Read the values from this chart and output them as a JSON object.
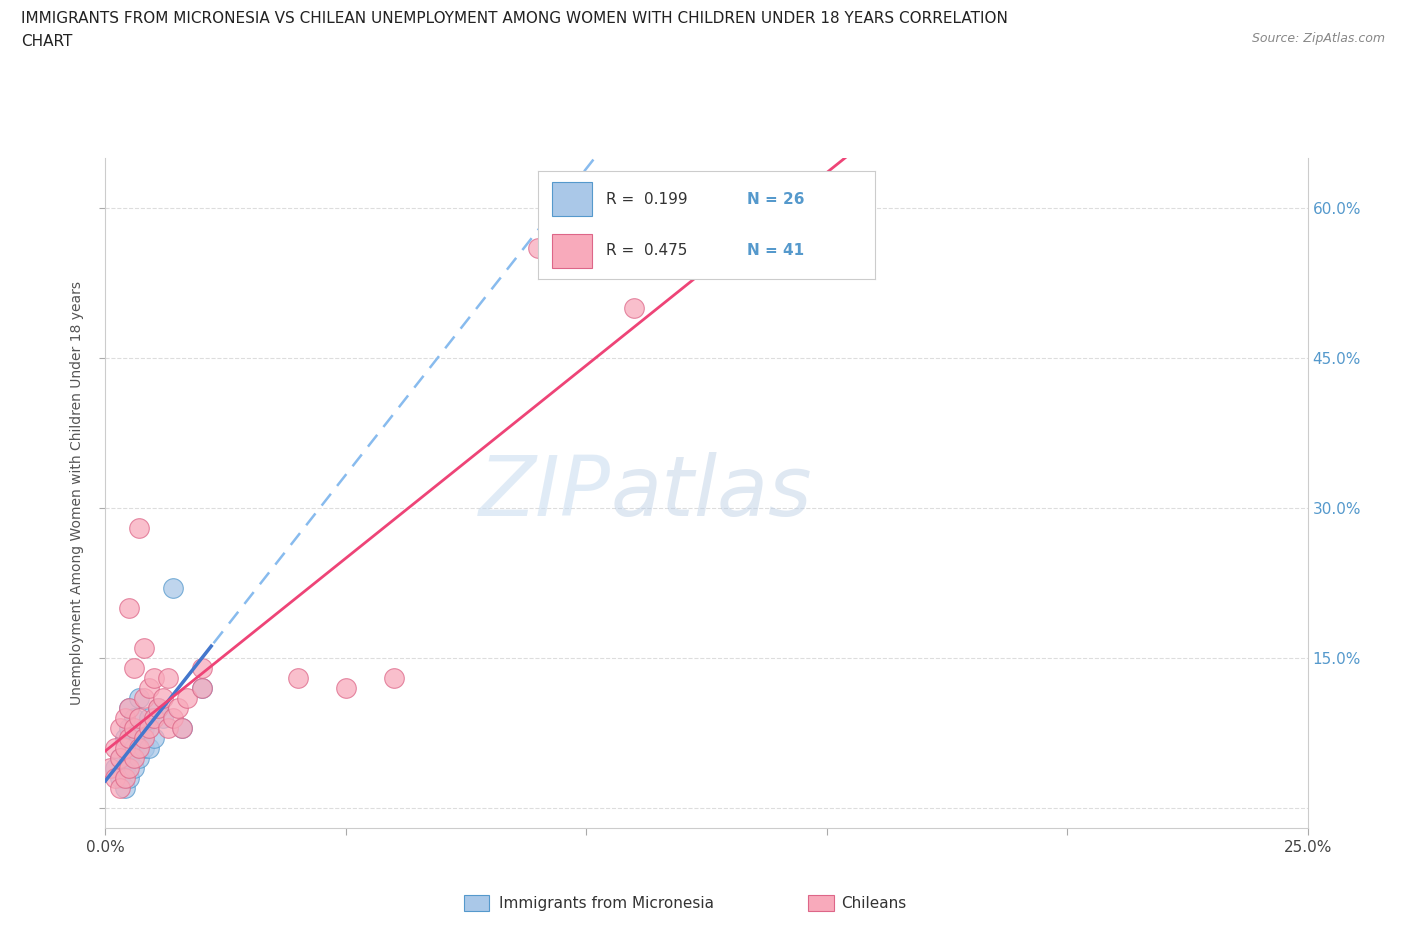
{
  "title_line1": "IMMIGRANTS FROM MICRONESIA VS CHILEAN UNEMPLOYMENT AMONG WOMEN WITH CHILDREN UNDER 18 YEARS CORRELATION",
  "title_line2": "CHART",
  "source_text": "Source: ZipAtlas.com",
  "ylabel": "Unemployment Among Women with Children Under 18 years",
  "xlim": [
    0.0,
    0.25
  ],
  "ylim": [
    -0.02,
    0.65
  ],
  "yticks": [
    0.0,
    0.15,
    0.3,
    0.45,
    0.6
  ],
  "ytick_right_labels": [
    "",
    "15.0%",
    "30.0%",
    "45.0%",
    "60.0%"
  ],
  "watermark_zip": "ZIP",
  "watermark_atlas": "atlas",
  "color_blue_fill": "#aac8e8",
  "color_blue_edge": "#5599cc",
  "color_pink_fill": "#f8aabb",
  "color_pink_edge": "#dd6688",
  "color_trendline_blue_solid": "#4477cc",
  "color_trendline_blue_dash": "#88bbee",
  "color_trendline_pink": "#ee4477",
  "color_grid": "#dddddd",
  "color_right_axis": "#5599cc",
  "blue_x": [
    0.002,
    0.003,
    0.003,
    0.004,
    0.004,
    0.004,
    0.005,
    0.005,
    0.005,
    0.005,
    0.006,
    0.006,
    0.006,
    0.007,
    0.007,
    0.007,
    0.008,
    0.008,
    0.009,
    0.009,
    0.01,
    0.011,
    0.012,
    0.014,
    0.016,
    0.02
  ],
  "blue_y": [
    0.04,
    0.03,
    0.05,
    0.02,
    0.04,
    0.07,
    0.03,
    0.05,
    0.08,
    0.1,
    0.04,
    0.06,
    0.09,
    0.05,
    0.07,
    0.11,
    0.06,
    0.08,
    0.06,
    0.09,
    0.07,
    0.1,
    0.09,
    0.22,
    0.08,
    0.12
  ],
  "pink_x": [
    0.001,
    0.002,
    0.002,
    0.003,
    0.003,
    0.003,
    0.004,
    0.004,
    0.004,
    0.005,
    0.005,
    0.005,
    0.005,
    0.006,
    0.006,
    0.006,
    0.007,
    0.007,
    0.007,
    0.008,
    0.008,
    0.008,
    0.009,
    0.009,
    0.01,
    0.01,
    0.011,
    0.012,
    0.013,
    0.013,
    0.014,
    0.015,
    0.016,
    0.017,
    0.02,
    0.02,
    0.04,
    0.05,
    0.06,
    0.09,
    0.11
  ],
  "pink_y": [
    0.04,
    0.03,
    0.06,
    0.02,
    0.05,
    0.08,
    0.03,
    0.06,
    0.09,
    0.04,
    0.07,
    0.1,
    0.2,
    0.05,
    0.08,
    0.14,
    0.06,
    0.09,
    0.28,
    0.07,
    0.11,
    0.16,
    0.08,
    0.12,
    0.09,
    0.13,
    0.1,
    0.11,
    0.08,
    0.13,
    0.09,
    0.1,
    0.08,
    0.11,
    0.12,
    0.14,
    0.13,
    0.12,
    0.13,
    0.56,
    0.5
  ],
  "legend_r1_text": "R =  0.199",
  "legend_n1_text": "N = 26",
  "legend_r2_text": "R =  0.475",
  "legend_n2_text": "N = 41",
  "legend_label1": "Immigrants from Micronesia",
  "legend_label2": "Chileans",
  "background_color": "#ffffff"
}
